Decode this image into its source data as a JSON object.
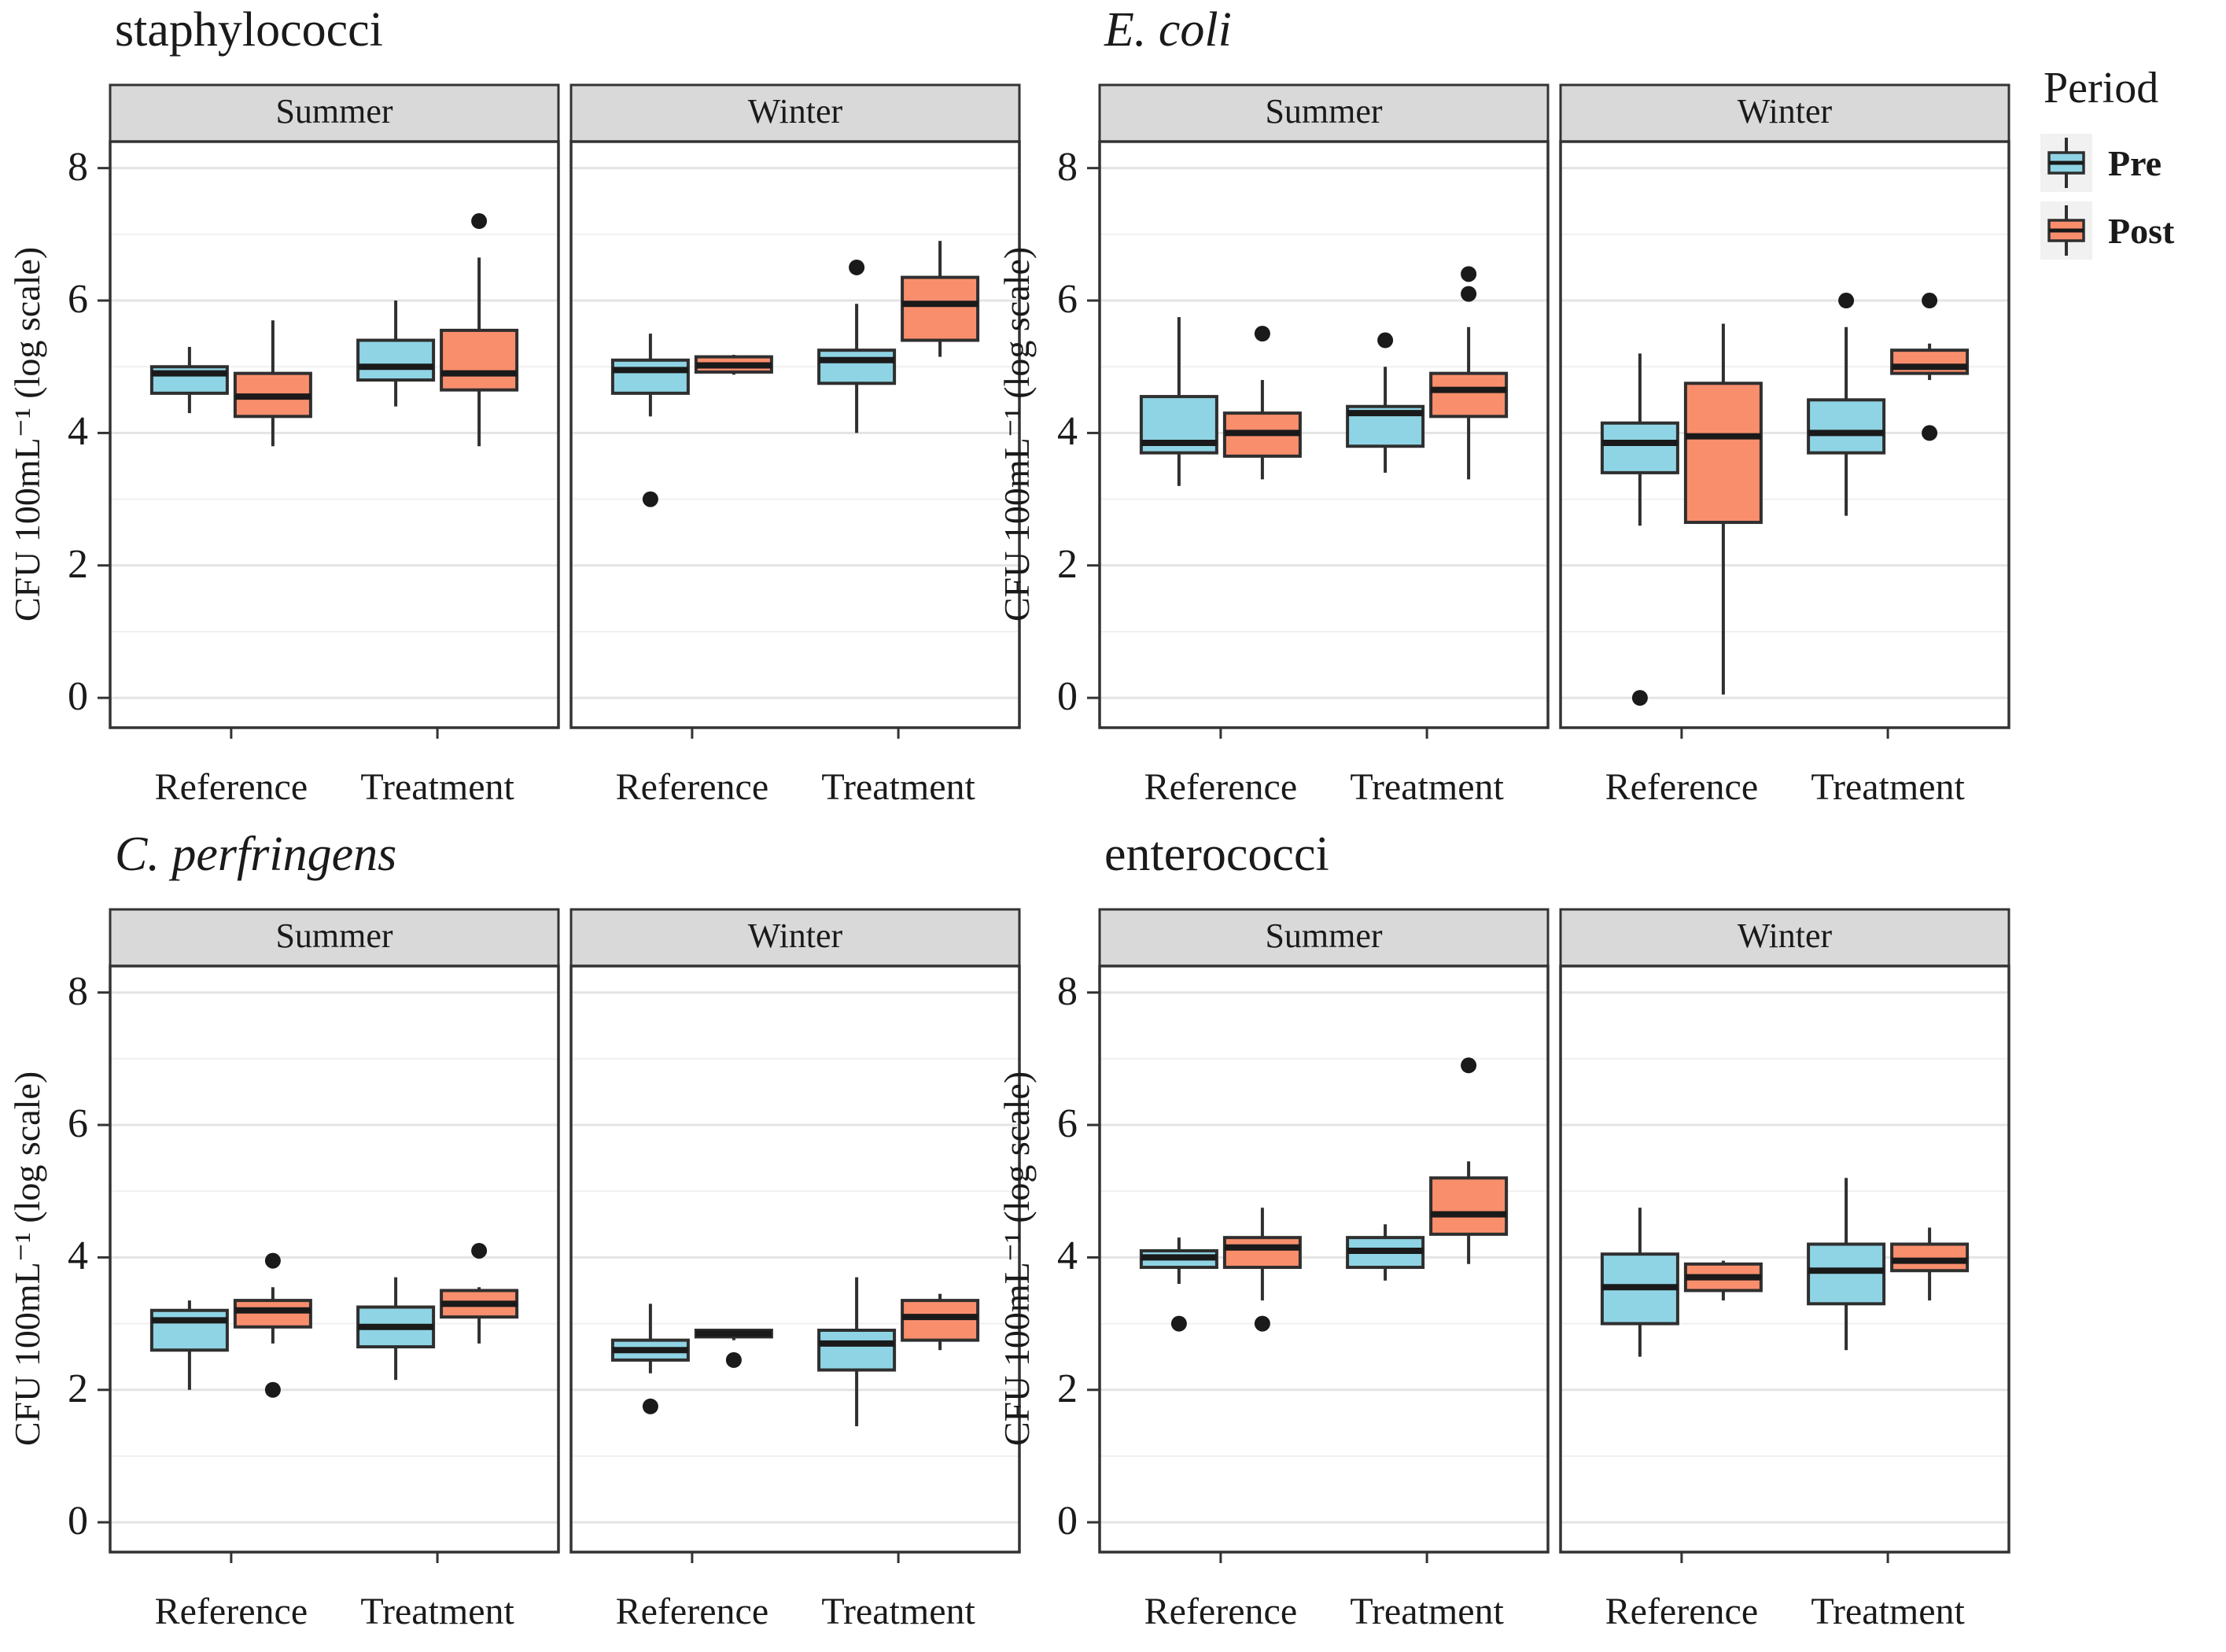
{
  "chart_data": {
    "type": "grouped_boxplot",
    "ylabel": "CFU 100mL⁻¹ (log scale)",
    "yticks": [
      0,
      2,
      4,
      6,
      8
    ],
    "ylim": [
      -0.45,
      8.4
    ],
    "grid": "light gray major+minor on white, panel border dark",
    "x_categories": [
      "Reference",
      "Treatment"
    ],
    "facet_labels": [
      "Summer",
      "Winter"
    ],
    "legend": {
      "title": "Period",
      "position": "top-right",
      "items": [
        {
          "label": "Pre",
          "color": "#8FD4E4"
        },
        {
          "label": "Post",
          "color": "#F98E6D"
        }
      ]
    },
    "style": {
      "pre_fill": "#8FD4E4",
      "post_fill": "#F98E6D",
      "box_stroke": "#2F2F2F",
      "median_stroke": "#1A1A1A",
      "outlier_color": "#1A1A1A",
      "strip_bg": "#D9D9D9",
      "panel_border": "#333333",
      "grid_major": "#E4E4E4",
      "grid_minor": "#F0F0F0"
    },
    "charts": [
      {
        "title": "staphylococci",
        "title_italic": false,
        "facets": [
          {
            "label": "Summer",
            "boxes": [
              {
                "group": "Reference",
                "period": "Pre",
                "whislo": 4.3,
                "q1": 4.6,
                "med": 4.9,
                "q3": 5.0,
                "whishi": 5.3,
                "outliers": []
              },
              {
                "group": "Reference",
                "period": "Post",
                "whislo": 3.8,
                "q1": 4.25,
                "med": 4.55,
                "q3": 4.9,
                "whishi": 5.7,
                "outliers": []
              },
              {
                "group": "Treatment",
                "period": "Pre",
                "whislo": 4.4,
                "q1": 4.8,
                "med": 5.0,
                "q3": 5.4,
                "whishi": 6.0,
                "outliers": []
              },
              {
                "group": "Treatment",
                "period": "Post",
                "whislo": 3.8,
                "q1": 4.65,
                "med": 4.9,
                "q3": 5.55,
                "whishi": 6.65,
                "outliers": [
                  7.2
                ]
              }
            ]
          },
          {
            "label": "Winter",
            "boxes": [
              {
                "group": "Reference",
                "period": "Pre",
                "whislo": 4.25,
                "q1": 4.6,
                "med": 4.95,
                "q3": 5.1,
                "whishi": 5.5,
                "outliers": [
                  3.0
                ]
              },
              {
                "group": "Reference",
                "period": "Post",
                "whislo": 4.88,
                "q1": 4.92,
                "med": 5.02,
                "q3": 5.15,
                "whishi": 5.18,
                "outliers": []
              },
              {
                "group": "Treatment",
                "period": "Pre",
                "whislo": 4.0,
                "q1": 4.75,
                "med": 5.1,
                "q3": 5.25,
                "whishi": 5.95,
                "outliers": [
                  6.5
                ]
              },
              {
                "group": "Treatment",
                "period": "Post",
                "whislo": 5.15,
                "q1": 5.4,
                "med": 5.95,
                "q3": 6.35,
                "whishi": 6.9,
                "outliers": []
              }
            ]
          }
        ]
      },
      {
        "title": "E. coli",
        "title_italic": true,
        "facets": [
          {
            "label": "Summer",
            "boxes": [
              {
                "group": "Reference",
                "period": "Pre",
                "whislo": 3.2,
                "q1": 3.7,
                "med": 3.85,
                "q3": 4.55,
                "whishi": 5.75,
                "outliers": []
              },
              {
                "group": "Reference",
                "period": "Post",
                "whislo": 3.3,
                "q1": 3.65,
                "med": 4.0,
                "q3": 4.3,
                "whishi": 4.8,
                "outliers": [
                  5.5
                ]
              },
              {
                "group": "Treatment",
                "period": "Pre",
                "whislo": 3.4,
                "q1": 3.8,
                "med": 4.3,
                "q3": 4.4,
                "whishi": 5.0,
                "outliers": [
                  5.4
                ]
              },
              {
                "group": "Treatment",
                "period": "Post",
                "whislo": 3.3,
                "q1": 4.25,
                "med": 4.65,
                "q3": 4.9,
                "whishi": 5.6,
                "outliers": [
                  6.1,
                  6.4
                ]
              }
            ]
          },
          {
            "label": "Winter",
            "boxes": [
              {
                "group": "Reference",
                "period": "Pre",
                "whislo": 2.6,
                "q1": 3.4,
                "med": 3.85,
                "q3": 4.15,
                "whishi": 5.2,
                "outliers": [
                  0.0
                ]
              },
              {
                "group": "Reference",
                "period": "Post",
                "whislo": 0.05,
                "q1": 2.65,
                "med": 3.95,
                "q3": 4.75,
                "whishi": 5.65,
                "outliers": []
              },
              {
                "group": "Treatment",
                "period": "Pre",
                "whislo": 2.75,
                "q1": 3.7,
                "med": 4.0,
                "q3": 4.5,
                "whishi": 5.6,
                "outliers": [
                  6.0
                ]
              },
              {
                "group": "Treatment",
                "period": "Post",
                "whislo": 4.8,
                "q1": 4.9,
                "med": 5.0,
                "q3": 5.25,
                "whishi": 5.35,
                "outliers": [
                  6.0,
                  4.0
                ]
              }
            ]
          }
        ]
      },
      {
        "title": "C. perfringens",
        "title_italic": true,
        "facets": [
          {
            "label": "Summer",
            "boxes": [
              {
                "group": "Reference",
                "period": "Pre",
                "whislo": 2.0,
                "q1": 2.6,
                "med": 3.05,
                "q3": 3.2,
                "whishi": 3.35,
                "outliers": []
              },
              {
                "group": "Reference",
                "period": "Post",
                "whislo": 2.7,
                "q1": 2.95,
                "med": 3.2,
                "q3": 3.35,
                "whishi": 3.55,
                "outliers": [
                  3.95,
                  2.0
                ]
              },
              {
                "group": "Treatment",
                "period": "Pre",
                "whislo": 2.15,
                "q1": 2.65,
                "med": 2.95,
                "q3": 3.25,
                "whishi": 3.7,
                "outliers": []
              },
              {
                "group": "Treatment",
                "period": "Post",
                "whislo": 2.7,
                "q1": 3.1,
                "med": 3.3,
                "q3": 3.5,
                "whishi": 3.55,
                "outliers": [
                  4.1
                ]
              }
            ]
          },
          {
            "label": "Winter",
            "boxes": [
              {
                "group": "Reference",
                "period": "Pre",
                "whislo": 2.25,
                "q1": 2.45,
                "med": 2.6,
                "q3": 2.75,
                "whishi": 3.3,
                "outliers": [
                  1.75
                ]
              },
              {
                "group": "Reference",
                "period": "Post",
                "whislo": 2.75,
                "q1": 2.8,
                "med": 2.85,
                "q3": 2.9,
                "whishi": 2.92,
                "outliers": [
                  2.45
                ]
              },
              {
                "group": "Treatment",
                "period": "Pre",
                "whislo": 1.45,
                "q1": 2.3,
                "med": 2.7,
                "q3": 2.9,
                "whishi": 3.7,
                "outliers": []
              },
              {
                "group": "Treatment",
                "period": "Post",
                "whislo": 2.6,
                "q1": 2.75,
                "med": 3.1,
                "q3": 3.35,
                "whishi": 3.45,
                "outliers": []
              }
            ]
          }
        ]
      },
      {
        "title": "enterococci",
        "title_italic": false,
        "facets": [
          {
            "label": "Summer",
            "boxes": [
              {
                "group": "Reference",
                "period": "Pre",
                "whislo": 3.6,
                "q1": 3.85,
                "med": 4.0,
                "q3": 4.1,
                "whishi": 4.3,
                "outliers": [
                  3.0
                ]
              },
              {
                "group": "Reference",
                "period": "Post",
                "whislo": 3.35,
                "q1": 3.85,
                "med": 4.15,
                "q3": 4.3,
                "whishi": 4.75,
                "outliers": [
                  3.0
                ]
              },
              {
                "group": "Treatment",
                "period": "Pre",
                "whislo": 3.65,
                "q1": 3.85,
                "med": 4.1,
                "q3": 4.3,
                "whishi": 4.5,
                "outliers": []
              },
              {
                "group": "Treatment",
                "period": "Post",
                "whislo": 3.9,
                "q1": 4.35,
                "med": 4.65,
                "q3": 5.2,
                "whishi": 5.45,
                "outliers": [
                  6.9
                ]
              }
            ]
          },
          {
            "label": "Winter",
            "boxes": [
              {
                "group": "Reference",
                "period": "Pre",
                "whislo": 2.5,
                "q1": 3.0,
                "med": 3.55,
                "q3": 4.05,
                "whishi": 4.75,
                "outliers": []
              },
              {
                "group": "Reference",
                "period": "Post",
                "whislo": 3.35,
                "q1": 3.5,
                "med": 3.7,
                "q3": 3.9,
                "whishi": 3.95,
                "outliers": []
              },
              {
                "group": "Treatment",
                "period": "Pre",
                "whislo": 2.6,
                "q1": 3.3,
                "med": 3.8,
                "q3": 4.2,
                "whishi": 5.2,
                "outliers": []
              },
              {
                "group": "Treatment",
                "period": "Post",
                "whislo": 3.35,
                "q1": 3.8,
                "med": 3.95,
                "q3": 4.2,
                "whishi": 4.45,
                "outliers": []
              }
            ]
          }
        ]
      }
    ]
  }
}
